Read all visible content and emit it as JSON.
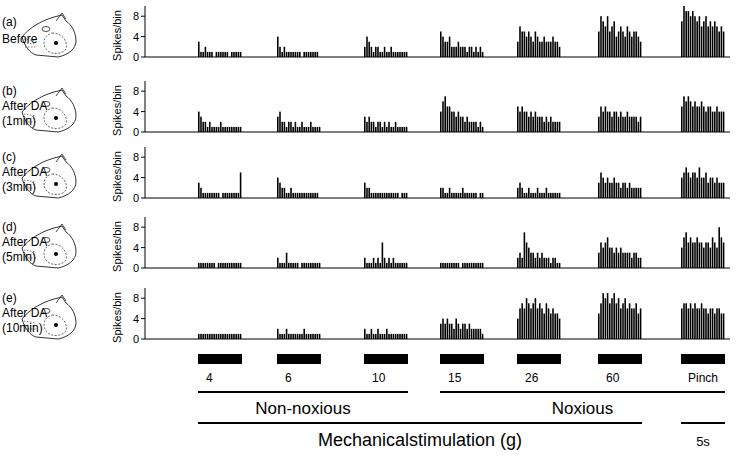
{
  "chart_data": [
    {
      "type": "bar",
      "label": "(a)",
      "title": "Before",
      "ylabel": "Spikes/bin",
      "ylim": [
        0,
        10
      ],
      "yticks": [
        0,
        4,
        8
      ],
      "color": "#000000",
      "values": [
        [
          3,
          1,
          1,
          2,
          1,
          1,
          1,
          0,
          1,
          1,
          1,
          1,
          1,
          1,
          0,
          1,
          1,
          1,
          1,
          1
        ],
        [
          4,
          2,
          1,
          2,
          1,
          1,
          1,
          1,
          1,
          1,
          1,
          0,
          1,
          1,
          1,
          1,
          1,
          1,
          1,
          0
        ],
        [
          2,
          4,
          3,
          2,
          1,
          2,
          2,
          1,
          1,
          2,
          1,
          1,
          2,
          1,
          1,
          1,
          1,
          1,
          1,
          1
        ],
        [
          5,
          4,
          3,
          3,
          4,
          2,
          2,
          2,
          3,
          2,
          2,
          2,
          1,
          2,
          2,
          1,
          2,
          1,
          2,
          1
        ],
        [
          3,
          6,
          5,
          5,
          4,
          5,
          4,
          3,
          5,
          4,
          3,
          3,
          4,
          3,
          3,
          3,
          4,
          3,
          3,
          2
        ],
        [
          5,
          8,
          7,
          6,
          8,
          5,
          6,
          7,
          4,
          5,
          6,
          5,
          4,
          6,
          5,
          4,
          5,
          5,
          4,
          3
        ],
        [
          7,
          10,
          9,
          9,
          8,
          9,
          8,
          7,
          8,
          6,
          7,
          8,
          6,
          7,
          6,
          7,
          6,
          5,
          6,
          5
        ]
      ]
    },
    {
      "type": "bar",
      "label": "(b)",
      "title": "After DA",
      "subtitle": "(1min)",
      "ylabel": "Spikes/bin",
      "ylim": [
        0,
        10
      ],
      "yticks": [
        0,
        4,
        8
      ],
      "color": "#000000",
      "values": [
        [
          4,
          3,
          2,
          2,
          1,
          2,
          1,
          1,
          1,
          1,
          2,
          1,
          1,
          1,
          1,
          1,
          1,
          1,
          1,
          1
        ],
        [
          3,
          4,
          2,
          2,
          1,
          2,
          2,
          1,
          2,
          1,
          1,
          2,
          1,
          1,
          1,
          2,
          1,
          1,
          1,
          1
        ],
        [
          3,
          2,
          3,
          2,
          2,
          1,
          2,
          2,
          1,
          2,
          1,
          2,
          1,
          1,
          2,
          1,
          1,
          1,
          1,
          1
        ],
        [
          4,
          6,
          7,
          5,
          5,
          4,
          4,
          3,
          4,
          3,
          3,
          2,
          3,
          2,
          2,
          2,
          2,
          1,
          2,
          1
        ],
        [
          5,
          4,
          5,
          4,
          4,
          3,
          4,
          3,
          4,
          3,
          3,
          3,
          2,
          3,
          2,
          3,
          2,
          2,
          2,
          2
        ],
        [
          3,
          5,
          4,
          5,
          4,
          4,
          3,
          4,
          4,
          3,
          4,
          3,
          3,
          4,
          3,
          3,
          3,
          3,
          2,
          3
        ],
        [
          5,
          7,
          6,
          7,
          6,
          5,
          6,
          5,
          5,
          6,
          5,
          4,
          5,
          5,
          4,
          4,
          5,
          4,
          4,
          4
        ]
      ]
    },
    {
      "type": "bar",
      "label": "(c)",
      "title": "After DA",
      "subtitle": "(3min)",
      "ylabel": "Spikes/bin",
      "ylim": [
        0,
        10
      ],
      "yticks": [
        0,
        4,
        8
      ],
      "color": "#000000",
      "values": [
        [
          3,
          2,
          1,
          1,
          1,
          1,
          1,
          1,
          1,
          1,
          0,
          1,
          1,
          1,
          1,
          1,
          1,
          1,
          1,
          5
        ],
        [
          4,
          3,
          2,
          2,
          1,
          1,
          2,
          1,
          1,
          1,
          1,
          1,
          1,
          1,
          1,
          1,
          1,
          1,
          1,
          0
        ],
        [
          3,
          2,
          2,
          1,
          1,
          1,
          1,
          1,
          1,
          1,
          1,
          1,
          1,
          1,
          1,
          1,
          0,
          1,
          1,
          1
        ],
        [
          2,
          2,
          1,
          1,
          2,
          1,
          1,
          1,
          1,
          1,
          2,
          1,
          1,
          1,
          1,
          1,
          1,
          0,
          1,
          1
        ],
        [
          2,
          3,
          2,
          1,
          1,
          2,
          1,
          1,
          1,
          2,
          1,
          1,
          1,
          2,
          1,
          1,
          1,
          1,
          1,
          1
        ],
        [
          3,
          5,
          4,
          3,
          4,
          3,
          3,
          4,
          3,
          3,
          2,
          3,
          3,
          2,
          3,
          2,
          2,
          2,
          2,
          2
        ],
        [
          4,
          5,
          6,
          5,
          4,
          5,
          5,
          4,
          6,
          4,
          4,
          5,
          3,
          4,
          4,
          3,
          4,
          3,
          3,
          3
        ]
      ]
    },
    {
      "type": "bar",
      "label": "(d)",
      "title": "After DA",
      "subtitle": "(5min)",
      "ylabel": "Spikes/bin",
      "ylim": [
        0,
        10
      ],
      "yticks": [
        0,
        4,
        8
      ],
      "color": "#000000",
      "values": [
        [
          1,
          1,
          1,
          1,
          1,
          1,
          1,
          1,
          0,
          1,
          1,
          1,
          1,
          1,
          1,
          1,
          1,
          1,
          1,
          1
        ],
        [
          2,
          1,
          1,
          1,
          3,
          1,
          1,
          1,
          1,
          1,
          0,
          1,
          1,
          1,
          1,
          1,
          1,
          1,
          1,
          1
        ],
        [
          2,
          1,
          1,
          1,
          2,
          1,
          2,
          1,
          5,
          2,
          1,
          2,
          1,
          2,
          1,
          1,
          1,
          1,
          1,
          1
        ],
        [
          1,
          1,
          1,
          1,
          1,
          1,
          1,
          1,
          1,
          0,
          1,
          1,
          1,
          1,
          1,
          1,
          1,
          1,
          1,
          1
        ],
        [
          2,
          3,
          2,
          7,
          5,
          4,
          3,
          3,
          2,
          3,
          2,
          3,
          2,
          2,
          2,
          1,
          2,
          2,
          1,
          1
        ],
        [
          3,
          5,
          4,
          5,
          6,
          4,
          4,
          3,
          4,
          3,
          4,
          3,
          3,
          3,
          3,
          2,
          3,
          3,
          2,
          2
        ],
        [
          4,
          6,
          7,
          5,
          6,
          5,
          5,
          6,
          5,
          5,
          4,
          5,
          5,
          4,
          6,
          5,
          4,
          8,
          6,
          5
        ]
      ]
    },
    {
      "type": "bar",
      "label": "(e)",
      "title": "After DA",
      "subtitle": "(10min)",
      "ylabel": "Spikes/bin",
      "ylim": [
        0,
        10
      ],
      "yticks": [
        0,
        4,
        8
      ],
      "color": "#000000",
      "values": [
        [
          1,
          1,
          1,
          1,
          1,
          1,
          1,
          1,
          1,
          1,
          1,
          1,
          1,
          1,
          1,
          1,
          1,
          1,
          1,
          1
        ],
        [
          2,
          1,
          1,
          1,
          2,
          1,
          1,
          1,
          1,
          1,
          1,
          1,
          2,
          1,
          1,
          1,
          1,
          1,
          1,
          1
        ],
        [
          2,
          1,
          1,
          2,
          1,
          1,
          2,
          1,
          1,
          1,
          2,
          1,
          1,
          1,
          1,
          1,
          1,
          1,
          1,
          1
        ],
        [
          3,
          4,
          3,
          4,
          3,
          3,
          2,
          4,
          3,
          2,
          3,
          3,
          2,
          3,
          2,
          2,
          2,
          2,
          2,
          1
        ],
        [
          4,
          6,
          7,
          6,
          8,
          7,
          6,
          7,
          8,
          6,
          7,
          6,
          5,
          7,
          6,
          5,
          6,
          5,
          5,
          4
        ],
        [
          5,
          7,
          9,
          8,
          9,
          7,
          8,
          9,
          7,
          8,
          6,
          7,
          8,
          6,
          7,
          6,
          6,
          7,
          5,
          6
        ],
        [
          6,
          7,
          7,
          6,
          7,
          6,
          7,
          6,
          6,
          7,
          6,
          6,
          5,
          6,
          6,
          5,
          6,
          6,
          5,
          5
        ]
      ]
    }
  ],
  "stimulus": {
    "categories": [
      "4",
      "6",
      "10",
      "15",
      "26",
      "60",
      "Pinch"
    ],
    "color": "#000000",
    "groups": [
      {
        "label": "Non-noxious",
        "categories": [
          "4",
          "6",
          "10"
        ]
      },
      {
        "label": "Noxious",
        "categories": [
          "15",
          "26",
          "60",
          "Pinch"
        ]
      }
    ],
    "axis_label": "Mechanicalstimulation (g)",
    "scale_bar": "5s"
  }
}
